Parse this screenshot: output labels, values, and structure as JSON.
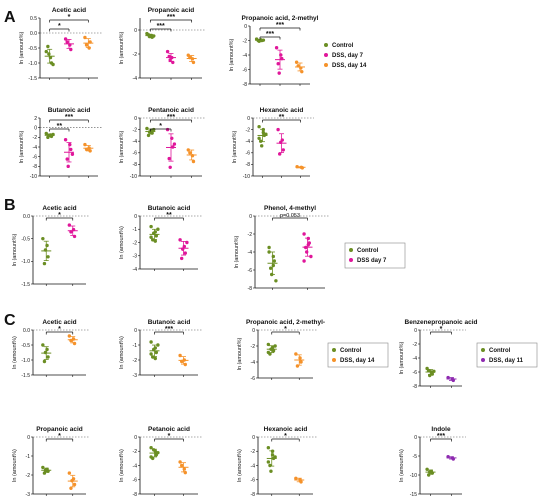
{
  "panel_labels": [
    "A",
    "B",
    "C"
  ],
  "legends": {
    "A": [
      {
        "label": "Control",
        "color": "#6b8e23"
      },
      {
        "label": "DSS, day 7",
        "color": "#e0169a"
      },
      {
        "label": "DSS, day 14",
        "color": "#f5922a"
      }
    ],
    "B": [
      {
        "label": "Control",
        "color": "#6b8e23"
      },
      {
        "label": "DSS day 7",
        "color": "#e0169a"
      }
    ],
    "C1": [
      {
        "label": "Control",
        "color": "#6b8e23"
      },
      {
        "label": "DSS, day 14",
        "color": "#f5922a"
      }
    ],
    "C2": [
      {
        "label": "Control",
        "color": "#6b8e23"
      },
      {
        "label": "DSS, day 11",
        "color": "#8e2ab0"
      }
    ]
  },
  "chart_data": [
    {
      "panel": "A",
      "type": "scatter",
      "title": "Acetic acid",
      "ylabel": "ln (amount%)",
      "ylim": [
        -1.5,
        0.5
      ],
      "yticks": [
        "0.5",
        "0.0",
        "-0.5",
        "-1.0",
        "-1.5"
      ],
      "yticks_v": [
        0.5,
        0,
        -0.5,
        -1,
        -1.5
      ],
      "ref_zero": true,
      "groups": [
        {
          "color": "#6b8e23",
          "values": [
            -0.62,
            -0.82,
            -1.0,
            -0.45,
            -0.7,
            -1.05
          ]
        },
        {
          "color": "#e0169a",
          "values": [
            -0.2,
            -0.4,
            -0.55,
            -0.3
          ]
        },
        {
          "color": "#f5922a",
          "values": [
            -0.15,
            -0.5,
            -0.3,
            -0.4
          ]
        }
      ],
      "sig": [
        {
          "from": 0,
          "to": 2,
          "label": "*",
          "level": 0
        },
        {
          "from": 0,
          "to": 1,
          "label": "*",
          "level": 1
        }
      ]
    },
    {
      "panel": "A",
      "type": "scatter",
      "title": "Propanoic acid",
      "ylabel": "ln (amount%)",
      "ylim": [
        -4,
        1
      ],
      "yticks": [
        "0",
        "-2",
        "-4"
      ],
      "yticks_v": [
        0,
        -2,
        -4
      ],
      "ref_zero": true,
      "groups": [
        {
          "color": "#6b8e23",
          "values": [
            -0.3,
            -0.45,
            -0.6,
            -0.4,
            -0.55,
            -0.5
          ]
        },
        {
          "color": "#e0169a",
          "values": [
            -1.8,
            -2.3,
            -2.7,
            -2.2,
            -2.5
          ]
        },
        {
          "color": "#f5922a",
          "values": [
            -2.1,
            -2.4,
            -2.7,
            -2.3
          ]
        }
      ],
      "sig": [
        {
          "from": 0,
          "to": 2,
          "label": "***",
          "level": 0
        },
        {
          "from": 0,
          "to": 1,
          "label": "***",
          "level": 1
        }
      ]
    },
    {
      "panel": "A",
      "type": "scatter",
      "title": "Propanoic acid, 2-methyl",
      "ylabel": "ln (amount%)",
      "ylim": [
        -8,
        0
      ],
      "yticks": [
        "0",
        "-2",
        "-4",
        "-6",
        "-8"
      ],
      "yticks_v": [
        0,
        -2,
        -4,
        -6,
        -8
      ],
      "ref_zero": false,
      "groups": [
        {
          "color": "#6b8e23",
          "values": [
            -1.8,
            -1.9,
            -2.0,
            -2.0,
            -2.1,
            -1.95
          ]
        },
        {
          "color": "#e0169a",
          "values": [
            -3.0,
            -4.0,
            -4.5,
            -5.2,
            -6.5
          ]
        },
        {
          "color": "#f5922a",
          "values": [
            -5.0,
            -5.8,
            -6.3,
            -5.5
          ]
        }
      ],
      "sig": [
        {
          "from": 0,
          "to": 2,
          "label": "***",
          "level": 0
        },
        {
          "from": 0,
          "to": 1,
          "label": "***",
          "level": 1
        }
      ]
    },
    {
      "panel": "A",
      "type": "scatter",
      "title": "Butanoic acid",
      "ylabel": "ln (amount%)",
      "ylim": [
        -10,
        2
      ],
      "yticks": [
        "2",
        "0",
        "-2",
        "-4",
        "-6",
        "-8",
        "-10"
      ],
      "yticks_v": [
        2,
        0,
        -2,
        -4,
        -6,
        -8,
        -10
      ],
      "ref_zero": true,
      "groups": [
        {
          "color": "#6b8e23",
          "values": [
            -1.2,
            -1.5,
            -1.8,
            -2.0,
            -1.6,
            -1.4
          ]
        },
        {
          "color": "#e0169a",
          "values": [
            -2.5,
            -3.5,
            -4.5,
            -6.5,
            -8.0,
            -5.5
          ]
        },
        {
          "color": "#f5922a",
          "values": [
            -3.5,
            -4.2,
            -4.8,
            -4.5
          ]
        }
      ],
      "sig": [
        {
          "from": 0,
          "to": 2,
          "label": "***",
          "level": 0
        },
        {
          "from": 0,
          "to": 1,
          "label": "**",
          "level": 1
        }
      ]
    },
    {
      "panel": "A",
      "type": "scatter",
      "title": "Pentanoic acid",
      "ylabel": "ln (amount%)",
      "ylim": [
        -10,
        0
      ],
      "yticks": [
        "0",
        "-2",
        "-4",
        "-6",
        "-8",
        "-10"
      ],
      "yticks_v": [
        0,
        -2,
        -4,
        -6,
        -8,
        -10
      ],
      "ref_zero": true,
      "groups": [
        {
          "color": "#6b8e23",
          "values": [
            -1.8,
            -2.2,
            -2.6,
            -3.0,
            -2.4,
            -2.0
          ]
        },
        {
          "color": "#e0169a",
          "values": [
            -2.0,
            -3.5,
            -5.0,
            -7.0,
            -8.5,
            -4.5
          ]
        },
        {
          "color": "#f5922a",
          "values": [
            -5.5,
            -6.5,
            -7.5,
            -6.0
          ]
        }
      ],
      "sig": [
        {
          "from": 0,
          "to": 2,
          "label": "***",
          "level": 0
        },
        {
          "from": 0,
          "to": 1,
          "label": "*",
          "level": 1
        }
      ]
    },
    {
      "panel": "A",
      "type": "scatter",
      "title": "Hexanoic acid",
      "ylabel": "ln (amount%)",
      "ylim": [
        -10,
        0
      ],
      "yticks": [
        "0",
        "-2",
        "-4",
        "-6",
        "-8",
        "-10"
      ],
      "yticks_v": [
        0,
        -2,
        -4,
        -6,
        -8,
        -10
      ],
      "ref_zero": true,
      "groups": [
        {
          "color": "#6b8e23",
          "values": [
            -1.5,
            -2.5,
            -3.0,
            -4.0,
            -4.8,
            -2.8,
            -3.5,
            -2.0
          ]
        },
        {
          "color": "#e0169a",
          "values": [
            -2.0,
            -3.8,
            -5.5,
            -6.2,
            -4.2
          ]
        },
        {
          "color": "#f5922a",
          "values": [
            -8.4,
            -8.5,
            -8.6
          ]
        }
      ],
      "sig": [
        {
          "from": 0,
          "to": 2,
          "label": "**",
          "level": 0
        }
      ]
    },
    {
      "panel": "B",
      "type": "scatter",
      "title": "Acetic acid",
      "ylabel": "ln (amount%)",
      "ylim": [
        -1.5,
        0
      ],
      "yticks": [
        "0.0",
        "-0.5",
        "-1.0",
        "-1.5"
      ],
      "yticks_v": [
        0,
        -0.5,
        -1,
        -1.5
      ],
      "ref_zero": true,
      "groups": [
        {
          "color": "#6b8e23",
          "values": [
            -0.5,
            -0.65,
            -0.9,
            -1.05,
            -0.75
          ]
        },
        {
          "color": "#e0169a",
          "values": [
            -0.2,
            -0.3,
            -0.45,
            -0.35
          ]
        }
      ],
      "sig": [
        {
          "from": 0,
          "to": 1,
          "label": "*",
          "level": 0
        }
      ]
    },
    {
      "panel": "B",
      "type": "scatter",
      "title": "Butanoic acid",
      "ylabel": "ln (amount%)",
      "ylim": [
        -4,
        0
      ],
      "yticks": [
        "0",
        "-1",
        "-2",
        "-3",
        "-4"
      ],
      "yticks_v": [
        0,
        -1,
        -2,
        -3,
        -4
      ],
      "ref_zero": true,
      "groups": [
        {
          "color": "#6b8e23",
          "values": [
            -0.8,
            -1.2,
            -1.5,
            -1.8,
            -1.3,
            -1.0,
            -1.6,
            -1.9
          ]
        },
        {
          "color": "#e0169a",
          "values": [
            -1.8,
            -2.3,
            -2.8,
            -3.2,
            -2.5,
            -2.0
          ]
        }
      ],
      "sig": [
        {
          "from": 0,
          "to": 1,
          "label": "**",
          "level": 0
        }
      ]
    },
    {
      "panel": "B",
      "type": "scatter",
      "title": "Phenol, 4-methyl",
      "ylabel": "ln (amount%)",
      "ylim": [
        -8,
        0
      ],
      "yticks": [
        "0",
        "-2",
        "-4",
        "-6",
        "-8"
      ],
      "yticks_v": [
        0,
        -2,
        -4,
        -6,
        -8
      ],
      "ref_zero": true,
      "groups": [
        {
          "color": "#6b8e23",
          "values": [
            -3.5,
            -4.5,
            -5.0,
            -5.8,
            -6.5,
            -7.2,
            -4.0,
            -5.5
          ]
        },
        {
          "color": "#e0169a",
          "values": [
            -2.0,
            -2.5,
            -3.0,
            -3.5,
            -4.0,
            -4.5,
            -5.0,
            -3.2
          ]
        }
      ],
      "sig": [
        {
          "from": 0,
          "to": 1,
          "label": "p=0.053",
          "level": 0
        }
      ]
    },
    {
      "panel": "C",
      "type": "scatter",
      "title": "Acetic acid",
      "ylabel": "ln (amount%)",
      "ylim": [
        -1.5,
        0
      ],
      "yticks": [
        "0.0",
        "-0.5",
        "-1.0",
        "-1.5"
      ],
      "yticks_v": [
        0,
        -0.5,
        -1,
        -1.5
      ],
      "ref_zero": true,
      "groups": [
        {
          "color": "#6b8e23",
          "values": [
            -0.5,
            -0.65,
            -0.9,
            -1.05,
            -0.75
          ]
        },
        {
          "color": "#f5922a",
          "values": [
            -0.2,
            -0.3,
            -0.45,
            -0.35
          ]
        }
      ],
      "sig": [
        {
          "from": 0,
          "to": 1,
          "label": "*",
          "level": 0
        }
      ]
    },
    {
      "panel": "C",
      "type": "scatter",
      "title": "Butanoic acid",
      "ylabel": "ln (amount%)",
      "ylim": [
        -3,
        0
      ],
      "yticks": [
        "0",
        "-1",
        "-2",
        "-3"
      ],
      "yticks_v": [
        0,
        -1,
        -2,
        -3
      ],
      "ref_zero": true,
      "groups": [
        {
          "color": "#6b8e23",
          "values": [
            -0.8,
            -1.2,
            -1.5,
            -1.8,
            -1.3,
            -1.0,
            -1.6,
            -1.9
          ]
        },
        {
          "color": "#f5922a",
          "values": [
            -1.7,
            -2.0,
            -2.3,
            -2.1
          ]
        }
      ],
      "sig": [
        {
          "from": 0,
          "to": 1,
          "label": "***",
          "level": 0
        }
      ]
    },
    {
      "panel": "C",
      "type": "scatter",
      "title": "Propanoic acid, 2-methyl-",
      "ylabel": "ln (amount%)",
      "ylim": [
        -6,
        0
      ],
      "yticks": [
        "0",
        "-2",
        "-4",
        "-6"
      ],
      "yticks_v": [
        0,
        -2,
        -4,
        -6
      ],
      "ref_zero": true,
      "groups": [
        {
          "color": "#6b8e23",
          "values": [
            -1.8,
            -2.2,
            -2.6,
            -3.0,
            -2.4,
            -2.0,
            -2.8
          ]
        },
        {
          "color": "#f5922a",
          "values": [
            -3.0,
            -3.5,
            -4.0,
            -4.5
          ]
        }
      ],
      "sig": [
        {
          "from": 0,
          "to": 1,
          "label": "*",
          "level": 0
        }
      ]
    },
    {
      "panel": "C",
      "type": "scatter",
      "title": "Benzenepropanoic acid",
      "ylabel": "ln (amount%)",
      "ylim": [
        -8,
        0
      ],
      "yticks": [
        "0",
        "-2",
        "-4",
        "-6",
        "-8"
      ],
      "yticks_v": [
        0,
        -2,
        -4,
        -6,
        -8
      ],
      "ref_zero": true,
      "groups": [
        {
          "color": "#6b8e23",
          "values": [
            -5.5,
            -6.0,
            -6.3,
            -5.8,
            -6.5,
            -5.9
          ]
        },
        {
          "color": "#8e2ab0",
          "values": [
            -6.8,
            -7.0,
            -7.2
          ]
        }
      ],
      "sig": [
        {
          "from": 0,
          "to": 1,
          "label": "*",
          "level": 0
        }
      ]
    },
    {
      "panel": "C",
      "type": "scatter",
      "title": "Propanoic acid",
      "ylabel": "ln (amount%)",
      "ylim": [
        -3,
        0
      ],
      "yticks": [
        "0",
        "-1",
        "-2",
        "-3"
      ],
      "yticks_v": [
        0,
        -1,
        -2,
        -3
      ],
      "ref_zero": true,
      "groups": [
        {
          "color": "#6b8e23",
          "values": [
            -1.6,
            -1.7,
            -1.8,
            -1.9,
            -1.75
          ]
        },
        {
          "color": "#f5922a",
          "values": [
            -1.9,
            -2.2,
            -2.5,
            -2.7,
            -2.3
          ]
        }
      ],
      "sig": [
        {
          "from": 0,
          "to": 1,
          "label": "*",
          "level": 0
        }
      ]
    },
    {
      "panel": "C",
      "type": "scatter",
      "title": "Petanoic acid",
      "ylabel": "ln (amount%)",
      "ylim": [
        -8,
        0
      ],
      "yticks": [
        "0",
        "-2",
        "-4",
        "-6",
        "-8"
      ],
      "yticks_v": [
        0,
        -2,
        -4,
        -6,
        -8
      ],
      "ref_zero": true,
      "groups": [
        {
          "color": "#6b8e23",
          "values": [
            -1.5,
            -2.0,
            -2.5,
            -3.0,
            -1.8,
            -2.2,
            -2.8
          ]
        },
        {
          "color": "#f5922a",
          "values": [
            -3.5,
            -4.5,
            -5.0,
            -4.0
          ]
        }
      ],
      "sig": [
        {
          "from": 0,
          "to": 1,
          "label": "*",
          "level": 0
        }
      ]
    },
    {
      "panel": "C",
      "type": "scatter",
      "title": "Hexanoic acid",
      "ylabel": "ln (amount%)",
      "ylim": [
        -8,
        0
      ],
      "yticks": [
        "0",
        "-2",
        "-4",
        "-6",
        "-8"
      ],
      "yticks_v": [
        0,
        -2,
        -4,
        -6,
        -8
      ],
      "ref_zero": true,
      "groups": [
        {
          "color": "#6b8e23",
          "values": [
            -1.5,
            -2.5,
            -3.0,
            -4.0,
            -4.8,
            -2.8,
            -3.5,
            -2.0
          ]
        },
        {
          "color": "#f5922a",
          "values": [
            -5.8,
            -6.0,
            -6.3
          ]
        }
      ],
      "sig": [
        {
          "from": 0,
          "to": 1,
          "label": "*",
          "level": 0
        }
      ]
    },
    {
      "panel": "C",
      "type": "scatter",
      "title": "Indole",
      "ylabel": "ln (amount%)",
      "ylim": [
        -15,
        0
      ],
      "yticks": [
        "0",
        "-5",
        "-10",
        "-15"
      ],
      "yticks_v": [
        0,
        -5,
        -10,
        -15
      ],
      "ref_zero": true,
      "groups": [
        {
          "color": "#6b8e23",
          "values": [
            -8.5,
            -9.0,
            -9.5,
            -10.0,
            -9.2
          ]
        },
        {
          "color": "#8e2ab0",
          "values": [
            -5.2,
            -5.5,
            -5.8
          ]
        }
      ],
      "sig": [
        {
          "from": 0,
          "to": 1,
          "label": "***",
          "level": 0
        }
      ]
    }
  ]
}
